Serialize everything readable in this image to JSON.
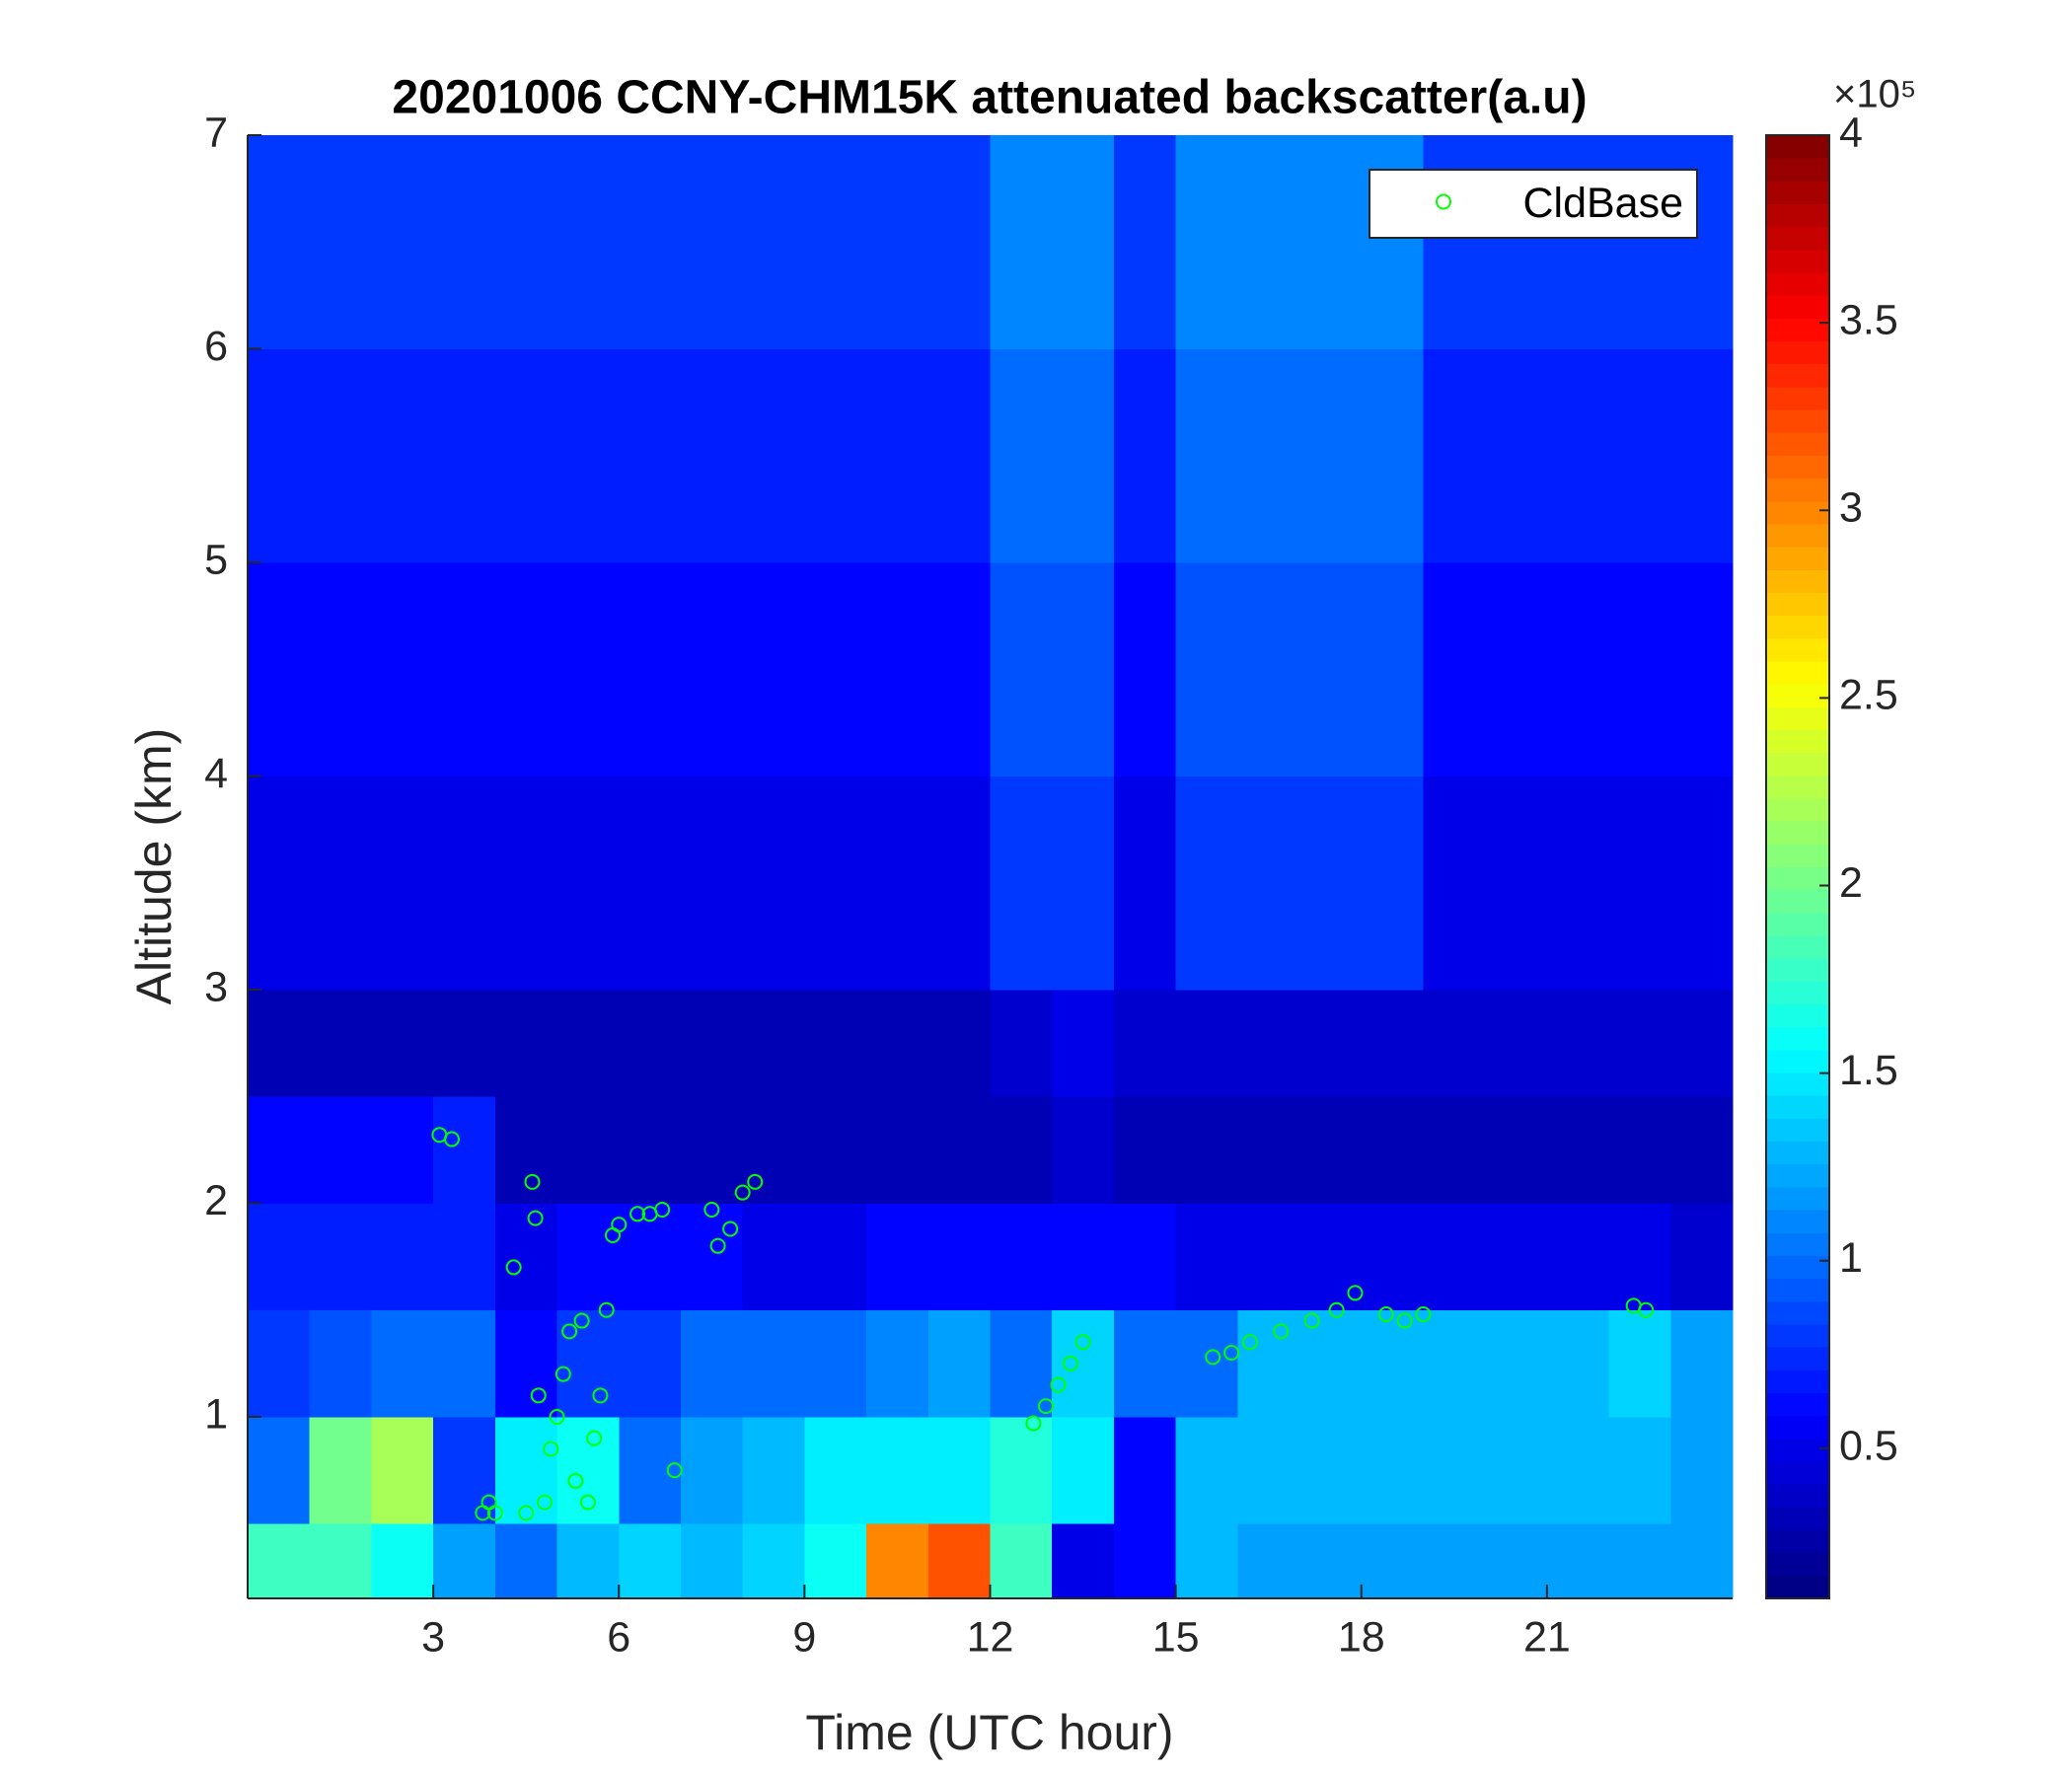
{
  "chart_data": {
    "type": "heatmap",
    "title": "20201006 CCNY-CHM15K attenuated backscatter(a.u)",
    "xlabel": "Time (UTC hour)",
    "ylabel": "Altitude (km)",
    "xlim": [
      0,
      24
    ],
    "ylim": [
      0.15,
      7
    ],
    "xticks": [
      3,
      6,
      9,
      12,
      15,
      18,
      21
    ],
    "yticks": [
      1,
      2,
      3,
      4,
      5,
      6,
      7
    ],
    "x_edges": [
      0,
      1,
      2,
      3,
      4,
      5,
      6,
      7,
      8,
      9,
      10,
      11,
      12,
      13,
      14,
      15,
      16,
      17,
      18,
      19,
      20,
      21,
      22,
      23,
      24
    ],
    "y_edges": [
      0.15,
      0.5,
      1,
      1.5,
      2,
      2.5,
      3,
      4,
      5,
      6,
      7
    ],
    "z": [
      [
        1.8,
        1.8,
        1.6,
        1.2,
        1.0,
        1.3,
        1.4,
        1.3,
        1.4,
        1.6,
        3.0,
        3.2,
        1.8,
        0.5,
        0.6,
        1.3,
        1.2,
        1.2,
        1.2,
        1.2,
        1.2,
        1.2,
        1.2,
        1.2
      ],
      [
        1.0,
        2.0,
        2.2,
        0.8,
        1.5,
        1.6,
        1.0,
        1.2,
        1.3,
        1.5,
        1.5,
        1.5,
        1.7,
        1.5,
        0.6,
        1.3,
        1.3,
        1.3,
        1.3,
        1.3,
        1.3,
        1.3,
        1.3,
        1.2
      ],
      [
        0.8,
        0.9,
        1.0,
        1.0,
        0.6,
        0.8,
        0.8,
        1.0,
        1.0,
        1.0,
        1.1,
        1.2,
        1.0,
        1.4,
        1.0,
        1.0,
        1.3,
        1.3,
        1.3,
        1.3,
        1.3,
        1.3,
        1.4,
        1.2
      ],
      [
        0.7,
        0.7,
        0.7,
        0.7,
        0.5,
        0.6,
        0.6,
        0.6,
        0.5,
        0.5,
        0.6,
        0.6,
        0.6,
        0.6,
        0.6,
        0.5,
        0.5,
        0.5,
        0.5,
        0.5,
        0.5,
        0.5,
        0.5,
        0.4
      ],
      [
        0.6,
        0.6,
        0.6,
        0.7,
        0.3,
        0.3,
        0.3,
        0.3,
        0.3,
        0.3,
        0.3,
        0.3,
        0.3,
        0.4,
        0.3,
        0.3,
        0.3,
        0.3,
        0.3,
        0.3,
        0.3,
        0.3,
        0.3,
        0.3
      ],
      [
        0.3,
        0.3,
        0.3,
        0.3,
        0.3,
        0.3,
        0.3,
        0.3,
        0.3,
        0.3,
        0.3,
        0.3,
        0.4,
        0.5,
        0.4,
        0.4,
        0.4,
        0.4,
        0.4,
        0.4,
        0.4,
        0.4,
        0.4,
        0.4
      ],
      [
        0.5,
        0.5,
        0.5,
        0.5,
        0.5,
        0.5,
        0.5,
        0.5,
        0.5,
        0.5,
        0.5,
        0.5,
        0.8,
        0.8,
        0.5,
        0.8,
        0.8,
        0.8,
        0.8,
        0.5,
        0.5,
        0.5,
        0.5,
        0.5
      ],
      [
        0.6,
        0.6,
        0.6,
        0.6,
        0.6,
        0.6,
        0.6,
        0.6,
        0.6,
        0.6,
        0.6,
        0.6,
        0.9,
        0.9,
        0.6,
        0.9,
        0.9,
        0.9,
        0.9,
        0.6,
        0.6,
        0.6,
        0.6,
        0.6
      ],
      [
        0.7,
        0.7,
        0.7,
        0.7,
        0.7,
        0.7,
        0.7,
        0.7,
        0.7,
        0.7,
        0.7,
        0.7,
        1.0,
        1.0,
        0.7,
        1.0,
        1.0,
        1.0,
        1.0,
        0.7,
        0.7,
        0.7,
        0.7,
        0.7
      ],
      [
        0.8,
        0.8,
        0.8,
        0.8,
        0.8,
        0.8,
        0.8,
        0.8,
        0.8,
        0.8,
        0.8,
        0.8,
        1.1,
        1.1,
        0.8,
        1.1,
        1.1,
        1.1,
        1.1,
        0.8,
        0.8,
        0.8,
        0.8,
        0.8
      ]
    ],
    "colormap": "jet",
    "clim": [
      0.1,
      4
    ],
    "cticks": [
      0.5,
      1,
      1.5,
      2,
      2.5,
      3,
      3.5,
      4
    ],
    "colorbar_multiplier": "×10⁵",
    "legend": "upper right",
    "series": [
      {
        "name": "CldBase",
        "color": "#00ff00",
        "x": [
          3.1,
          3.3,
          3.8,
          3.9,
          4.0,
          4.3,
          4.5,
          4.6,
          4.65,
          4.7,
          4.8,
          4.9,
          5.0,
          5.1,
          5.2,
          5.3,
          5.4,
          5.5,
          5.6,
          5.7,
          5.8,
          5.9,
          6.0,
          6.3,
          6.5,
          6.7,
          6.9,
          7.5,
          7.6,
          7.8,
          8.0,
          8.2,
          12.7,
          12.9,
          13.1,
          13.3,
          13.5,
          15.6,
          15.9,
          16.2,
          16.7,
          17.2,
          17.6,
          17.9,
          18.4,
          18.7,
          19.0,
          22.4,
          22.6
        ],
        "y": [
          2.32,
          2.3,
          0.55,
          0.6,
          0.55,
          1.7,
          0.55,
          2.1,
          1.93,
          1.1,
          0.6,
          0.85,
          1.0,
          1.2,
          1.4,
          0.7,
          1.45,
          0.6,
          0.9,
          1.1,
          1.5,
          1.85,
          1.9,
          1.95,
          1.95,
          1.97,
          0.75,
          1.97,
          1.8,
          1.88,
          2.05,
          2.1,
          0.97,
          1.05,
          1.15,
          1.25,
          1.35,
          1.28,
          1.3,
          1.35,
          1.4,
          1.45,
          1.5,
          1.58,
          1.48,
          1.45,
          1.48,
          1.52,
          1.5
        ]
      }
    ]
  }
}
